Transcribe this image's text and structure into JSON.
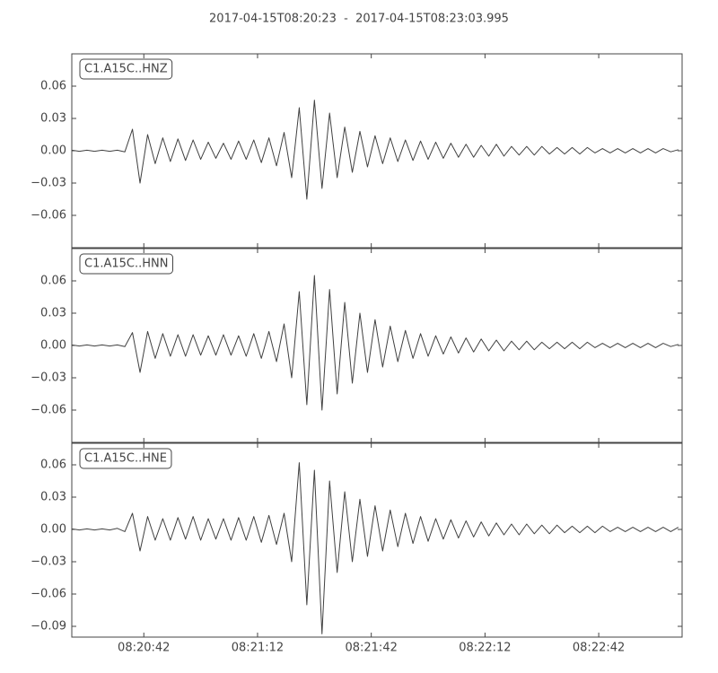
{
  "title": "2017-04-15T08:20:23  -  2017-04-15T08:23:03.995",
  "chart_data": [
    {
      "type": "line",
      "title": "C1.A15C..HNZ",
      "color": "#404040",
      "xlim": [
        0,
        160.995
      ],
      "xticks": [
        {
          "value": 19,
          "label": "08:20:42"
        },
        {
          "value": 49,
          "label": "08:21:12"
        },
        {
          "value": 79,
          "label": "08:21:42"
        },
        {
          "value": 109,
          "label": "08:22:12"
        },
        {
          "value": 139,
          "label": "08:22:42"
        }
      ],
      "ylim": [
        -0.09,
        0.09
      ],
      "yticks": [
        {
          "value": -0.06,
          "label": "−0.06"
        },
        {
          "value": -0.03,
          "label": "−0.03"
        },
        {
          "value": 0,
          "label": "0.00"
        },
        {
          "value": 0.03,
          "label": "0.03"
        },
        {
          "value": 0.06,
          "label": "0.06"
        }
      ],
      "x": [
        0,
        2,
        4,
        6,
        8,
        10,
        12,
        14,
        16,
        18,
        20,
        22,
        24,
        26,
        28,
        30,
        32,
        34,
        36,
        38,
        40,
        42,
        44,
        46,
        48,
        50,
        52,
        54,
        56,
        58,
        60,
        62,
        64,
        66,
        68,
        70,
        72,
        74,
        76,
        78,
        80,
        82,
        84,
        86,
        88,
        90,
        92,
        94,
        96,
        98,
        100,
        102,
        104,
        106,
        108,
        110,
        112,
        114,
        116,
        118,
        120,
        122,
        124,
        126,
        128,
        130,
        132,
        134,
        136,
        138,
        140,
        142,
        144,
        146,
        148,
        150,
        152,
        154,
        156,
        158,
        160
      ],
      "values": [
        0.0005,
        -0.0005,
        0.0005,
        -0.0005,
        0.0005,
        -0.0005,
        0.0005,
        -0.001,
        0.02,
        -0.03,
        0.015,
        -0.012,
        0.012,
        -0.01,
        0.011,
        -0.009,
        0.01,
        -0.008,
        0.008,
        -0.007,
        0.007,
        -0.008,
        0.009,
        -0.008,
        0.01,
        -0.011,
        0.012,
        -0.014,
        0.017,
        -0.025,
        0.04,
        -0.045,
        0.047,
        -0.035,
        0.035,
        -0.025,
        0.022,
        -0.02,
        0.018,
        -0.015,
        0.014,
        -0.012,
        0.012,
        -0.01,
        0.01,
        -0.009,
        0.009,
        -0.008,
        0.008,
        -0.007,
        0.007,
        -0.006,
        0.006,
        -0.006,
        0.005,
        -0.005,
        0.006,
        -0.005,
        0.004,
        -0.004,
        0.004,
        -0.004,
        0.004,
        -0.003,
        0.003,
        -0.003,
        0.003,
        -0.003,
        0.003,
        -0.002,
        0.002,
        -0.002,
        0.002,
        -0.002,
        0.002,
        -0.002,
        0.002,
        -0.002,
        0.002,
        -0.001,
        0.001
      ]
    },
    {
      "type": "line",
      "title": "C1.A15C..HNN",
      "color": "#404040",
      "xlim": [
        0,
        160.995
      ],
      "xticks": [
        {
          "value": 19,
          "label": "08:20:42"
        },
        {
          "value": 49,
          "label": "08:21:12"
        },
        {
          "value": 79,
          "label": "08:21:42"
        },
        {
          "value": 109,
          "label": "08:22:12"
        },
        {
          "value": 139,
          "label": "08:22:42"
        }
      ],
      "ylim": [
        -0.09,
        0.09
      ],
      "yticks": [
        {
          "value": -0.06,
          "label": "−0.06"
        },
        {
          "value": -0.03,
          "label": "−0.03"
        },
        {
          "value": 0,
          "label": "0.00"
        },
        {
          "value": 0.03,
          "label": "0.03"
        },
        {
          "value": 0.06,
          "label": "0.06"
        }
      ],
      "x": [
        0,
        2,
        4,
        6,
        8,
        10,
        12,
        14,
        16,
        18,
        20,
        22,
        24,
        26,
        28,
        30,
        32,
        34,
        36,
        38,
        40,
        42,
        44,
        46,
        48,
        50,
        52,
        54,
        56,
        58,
        60,
        62,
        64,
        66,
        68,
        70,
        72,
        74,
        76,
        78,
        80,
        82,
        84,
        86,
        88,
        90,
        92,
        94,
        96,
        98,
        100,
        102,
        104,
        106,
        108,
        110,
        112,
        114,
        116,
        118,
        120,
        122,
        124,
        126,
        128,
        130,
        132,
        134,
        136,
        138,
        140,
        142,
        144,
        146,
        148,
        150,
        152,
        154,
        156,
        158,
        160
      ],
      "values": [
        0.0005,
        -0.0005,
        0.0005,
        -0.0005,
        0.0005,
        -0.0005,
        0.0005,
        -0.001,
        0.012,
        -0.025,
        0.013,
        -0.012,
        0.011,
        -0.01,
        0.01,
        -0.01,
        0.01,
        -0.009,
        0.009,
        -0.009,
        0.01,
        -0.009,
        0.009,
        -0.01,
        0.011,
        -0.012,
        0.013,
        -0.015,
        0.02,
        -0.03,
        0.05,
        -0.055,
        0.065,
        -0.06,
        0.052,
        -0.045,
        0.04,
        -0.035,
        0.03,
        -0.025,
        0.024,
        -0.02,
        0.018,
        -0.015,
        0.014,
        -0.012,
        0.011,
        -0.01,
        0.009,
        -0.008,
        0.008,
        -0.007,
        0.007,
        -0.006,
        0.006,
        -0.005,
        0.005,
        -0.005,
        0.004,
        -0.004,
        0.004,
        -0.004,
        0.003,
        -0.003,
        0.003,
        -0.003,
        0.003,
        -0.003,
        0.003,
        -0.002,
        0.002,
        -0.002,
        0.002,
        -0.002,
        0.002,
        -0.002,
        0.002,
        -0.002,
        0.002,
        -0.001,
        0.001
      ]
    },
    {
      "type": "line",
      "title": "C1.A15C..HNE",
      "color": "#404040",
      "xlim": [
        0,
        160.995
      ],
      "xticks": [
        {
          "value": 19,
          "label": "08:20:42"
        },
        {
          "value": 49,
          "label": "08:21:12"
        },
        {
          "value": 79,
          "label": "08:21:42"
        },
        {
          "value": 109,
          "label": "08:22:12"
        },
        {
          "value": 139,
          "label": "08:22:42"
        }
      ],
      "ylim": [
        -0.1,
        0.08
      ],
      "yticks": [
        {
          "value": -0.09,
          "label": "−0.09"
        },
        {
          "value": -0.06,
          "label": "−0.06"
        },
        {
          "value": -0.03,
          "label": "−0.03"
        },
        {
          "value": 0,
          "label": "0.00"
        },
        {
          "value": 0.03,
          "label": "0.03"
        },
        {
          "value": 0.06,
          "label": "0.06"
        }
      ],
      "x": [
        0,
        2,
        4,
        6,
        8,
        10,
        12,
        14,
        16,
        18,
        20,
        22,
        24,
        26,
        28,
        30,
        32,
        34,
        36,
        38,
        40,
        42,
        44,
        46,
        48,
        50,
        52,
        54,
        56,
        58,
        60,
        62,
        64,
        66,
        68,
        70,
        72,
        74,
        76,
        78,
        80,
        82,
        84,
        86,
        88,
        90,
        92,
        94,
        96,
        98,
        100,
        102,
        104,
        106,
        108,
        110,
        112,
        114,
        116,
        118,
        120,
        122,
        124,
        126,
        128,
        130,
        132,
        134,
        136,
        138,
        140,
        142,
        144,
        146,
        148,
        150,
        152,
        154,
        156,
        158,
        160
      ],
      "values": [
        0.0005,
        -0.0005,
        0.0005,
        -0.0005,
        0.0005,
        -0.0005,
        0.001,
        -0.002,
        0.015,
        -0.02,
        0.012,
        -0.01,
        0.01,
        -0.01,
        0.011,
        -0.009,
        0.012,
        -0.01,
        0.01,
        -0.009,
        0.01,
        -0.01,
        0.011,
        -0.01,
        0.012,
        -0.012,
        0.013,
        -0.014,
        0.015,
        -0.03,
        0.062,
        -0.07,
        0.055,
        -0.097,
        0.045,
        -0.04,
        0.035,
        -0.03,
        0.028,
        -0.025,
        0.022,
        -0.02,
        0.018,
        -0.016,
        0.015,
        -0.013,
        0.012,
        -0.011,
        0.01,
        -0.009,
        0.009,
        -0.008,
        0.008,
        -0.007,
        0.007,
        -0.006,
        0.006,
        -0.005,
        0.005,
        -0.005,
        0.005,
        -0.004,
        0.004,
        -0.004,
        0.004,
        -0.003,
        0.003,
        -0.003,
        0.003,
        -0.003,
        0.003,
        -0.002,
        0.002,
        -0.002,
        0.002,
        -0.002,
        0.002,
        -0.002,
        0.002,
        -0.002,
        0.002
      ]
    }
  ]
}
